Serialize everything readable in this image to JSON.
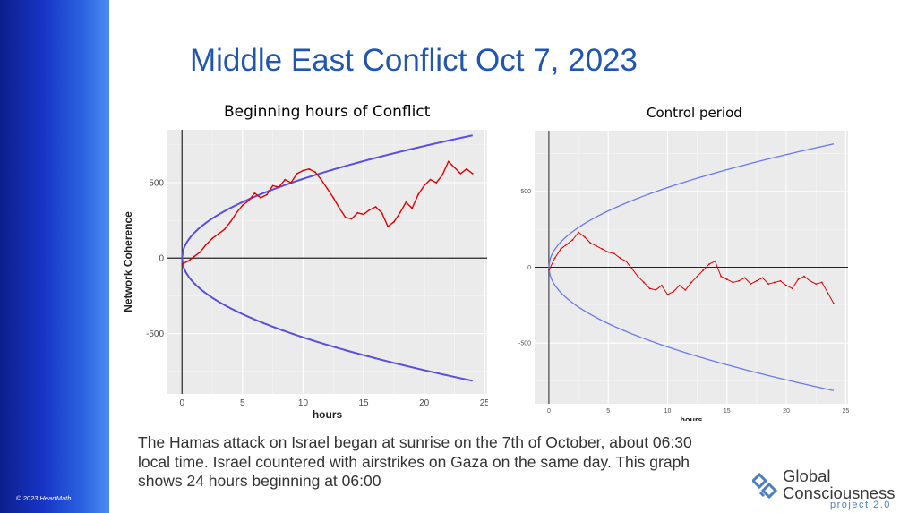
{
  "slide": {
    "title": "Middle East Conflict Oct 7, 2023",
    "description": "The Hamas attack on Israel began at sunrise on the 7th of October, about 06:30 local time. Israel countered with airstrikes on Gaza on the same day. This graph shows 24 hours beginning at 06:00",
    "copyright": "© 2023 HeartMath",
    "logo": {
      "line1": "Global",
      "line2": "Consciousness",
      "line3": "project 2.0"
    },
    "colors": {
      "sidebar_dark": "#0b1f8c",
      "sidebar_light": "#4a8cf2",
      "title": "#1f56b4",
      "envelope": "#5a4ee0",
      "trace": "#e00000"
    }
  },
  "chart_data": [
    {
      "type": "line",
      "title": "Beginning hours of Conflict",
      "xlabel": "hours",
      "ylabel": "Network Coherence",
      "xlim": [
        -1.2,
        25.2
      ],
      "ylim": [
        -900,
        850
      ],
      "xticks": [
        0,
        5,
        10,
        15,
        20,
        25
      ],
      "yticks": [
        -500,
        0,
        500
      ],
      "grid": true,
      "envelope_scale": 166,
      "series": [
        {
          "color": "#e00000",
          "x": [
            0,
            0.5,
            1,
            1.5,
            2,
            2.5,
            3,
            3.5,
            4,
            4.5,
            5,
            5.5,
            6,
            6.5,
            7,
            7.5,
            8,
            8.5,
            9,
            9.5,
            10,
            10.5,
            11,
            11.5,
            12,
            12.5,
            13,
            13.5,
            14,
            14.5,
            15,
            15.5,
            16,
            16.5,
            17,
            17.5,
            18,
            18.5,
            19,
            19.5,
            20,
            20.5,
            21,
            21.5,
            22,
            22.5,
            23,
            23.5,
            24
          ],
          "y": [
            -40,
            -20,
            10,
            40,
            90,
            130,
            160,
            190,
            240,
            300,
            350,
            380,
            430,
            400,
            420,
            480,
            470,
            520,
            500,
            560,
            580,
            590,
            570,
            520,
            460,
            400,
            330,
            270,
            260,
            300,
            290,
            320,
            340,
            300,
            210,
            240,
            300,
            370,
            330,
            420,
            480,
            520,
            500,
            550,
            640,
            600,
            560,
            590,
            560
          ]
        }
      ]
    },
    {
      "type": "line",
      "title": "Control period",
      "xlabel": "hours",
      "ylabel": "",
      "xlim": [
        -1.2,
        25.2
      ],
      "ylim": [
        -900,
        900
      ],
      "xticks": [
        0,
        5,
        10,
        15,
        20,
        25
      ],
      "yticks": [
        -500,
        0,
        500
      ],
      "grid": true,
      "envelope_scale": 166,
      "series": [
        {
          "color": "#e00000",
          "x": [
            0,
            0.5,
            1,
            1.5,
            2,
            2.5,
            3,
            3.5,
            4,
            4.5,
            5,
            5.5,
            6,
            6.5,
            7,
            7.5,
            8,
            8.5,
            9,
            9.5,
            10,
            10.5,
            11,
            11.5,
            12,
            12.5,
            13,
            13.5,
            14,
            14.5,
            15,
            15.5,
            16,
            16.5,
            17,
            17.5,
            18,
            18.5,
            19,
            19.5,
            20,
            20.5,
            21,
            21.5,
            22,
            22.5,
            23,
            23.5,
            24
          ],
          "y": [
            -20,
            60,
            120,
            150,
            180,
            230,
            200,
            160,
            140,
            120,
            100,
            90,
            60,
            40,
            -10,
            -60,
            -100,
            -140,
            -150,
            -120,
            -180,
            -160,
            -120,
            -150,
            -100,
            -60,
            -20,
            20,
            40,
            -60,
            -80,
            -100,
            -90,
            -70,
            -110,
            -90,
            -70,
            -110,
            -100,
            -90,
            -120,
            -140,
            -80,
            -60,
            -90,
            -110,
            -100,
            -170,
            -240
          ]
        }
      ]
    }
  ]
}
